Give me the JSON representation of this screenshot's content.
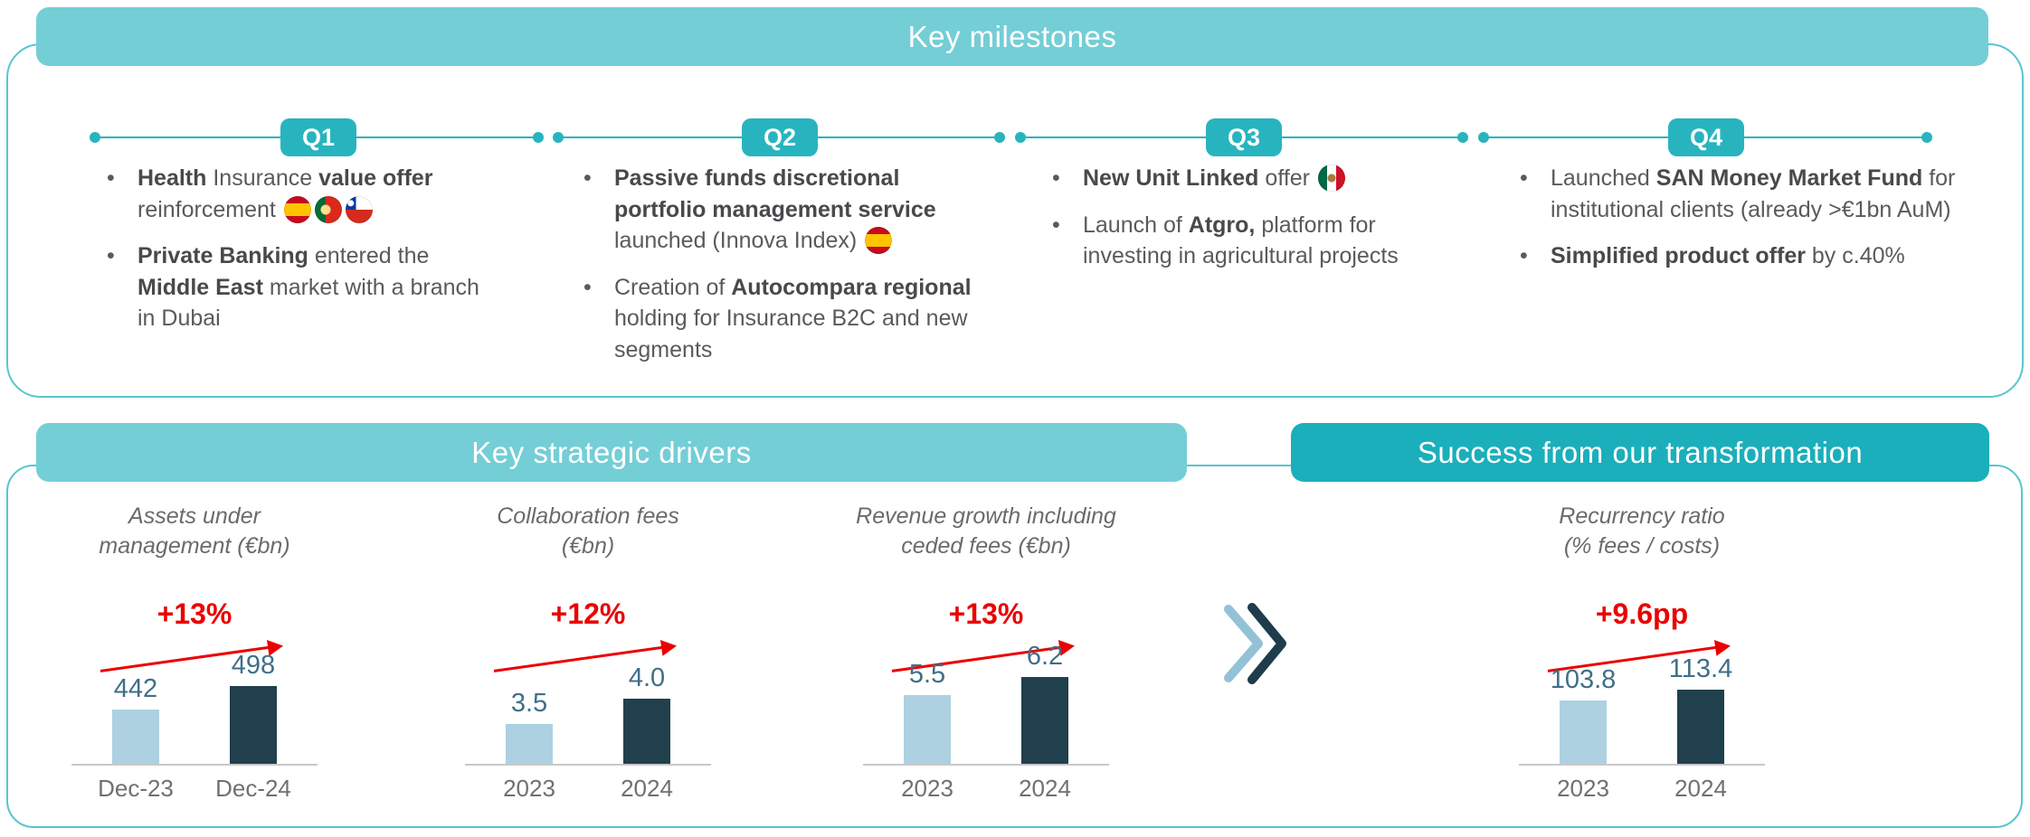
{
  "colors": {
    "teal_light": "#74ced6",
    "teal": "#28b4bf",
    "teal_dark": "#1aafbb",
    "box_border": "#57c6d0",
    "red": "#eb0000",
    "bar_light": "#add1e1",
    "bar_dark": "#20404d",
    "value_text": "#3f6f88",
    "text": "#595a5d"
  },
  "ui": {
    "bullet_glyph": "•"
  },
  "icons": {
    "transition": "double-chevron-right-icon",
    "trend": "growth-arrow-icon",
    "flags_used": [
      "spain-flag-icon",
      "portugal-flag-icon",
      "chile-flag-icon",
      "mexico-flag-icon"
    ]
  },
  "milestones": {
    "title": "Key milestones",
    "quarters": [
      {
        "label": "Q1",
        "bullets": [
          {
            "segments": [
              {
                "t": "Health",
                "b": true
              },
              {
                "t": " Insurance ",
                "b": false
              },
              {
                "t": "value offer",
                "b": true
              },
              {
                "t": " reinforcement ",
                "b": false
              },
              {
                "flag": "spain"
              },
              {
                "flag": "portugal"
              },
              {
                "flag": "chile"
              }
            ]
          },
          {
            "segments": [
              {
                "t": "Private Banking",
                "b": true
              },
              {
                "t": " entered the ",
                "b": false
              },
              {
                "t": "Middle East",
                "b": true
              },
              {
                "t": " market with a branch in Dubai",
                "b": false
              }
            ]
          }
        ]
      },
      {
        "label": "Q2",
        "bullets": [
          {
            "segments": [
              {
                "t": "Passive funds discretional portfolio management service",
                "b": true
              },
              {
                "t": " launched (Innova Index) ",
                "b": false
              },
              {
                "flag": "spain"
              }
            ]
          },
          {
            "segments": [
              {
                "t": "Creation of ",
                "b": false
              },
              {
                "t": "Autocompara regional",
                "b": true
              },
              {
                "t": " holding for Insurance B2C and new segments",
                "b": false
              }
            ]
          }
        ]
      },
      {
        "label": "Q3",
        "bullets": [
          {
            "segments": [
              {
                "t": "New Unit Linked",
                "b": true
              },
              {
                "t": " offer ",
                "b": false
              },
              {
                "flag": "mexico"
              }
            ]
          },
          {
            "segments": [
              {
                "t": "Launch of ",
                "b": false
              },
              {
                "t": "Atgro,",
                "b": true
              },
              {
                "t": " platform for investing in agricultural projects",
                "b": false
              }
            ]
          }
        ]
      },
      {
        "label": "Q4",
        "bullets": [
          {
            "segments": [
              {
                "t": "Launched ",
                "b": false
              },
              {
                "t": "SAN Money Market Fund",
                "b": true
              },
              {
                "t": " for institutional clients (already >€1bn AuM)",
                "b": false
              }
            ]
          },
          {
            "segments": [
              {
                "t": "Simplified product offer",
                "b": true
              },
              {
                "t": " by c.40%",
                "b": false
              }
            ]
          }
        ]
      }
    ]
  },
  "drivers": {
    "title": "Key strategic drivers"
  },
  "transformation": {
    "title": "Success from our transformation"
  },
  "chart_data": [
    {
      "id": "assets-under-management",
      "type": "bar",
      "title": "Assets under management (€bn)",
      "title_lines": [
        "Assets under",
        "management (€bn)"
      ],
      "categories": [
        "Dec-23",
        "Dec-24"
      ],
      "values": [
        442,
        498
      ],
      "value_labels": [
        "442",
        "498"
      ],
      "change_label": "+13%",
      "bar_colors": [
        "#add1e1",
        "#20404d"
      ],
      "grid": false,
      "legend": false
    },
    {
      "id": "collaboration-fees",
      "type": "bar",
      "title": "Collaboration fees (€bn)",
      "title_lines": [
        "Collaboration fees",
        "(€bn)"
      ],
      "categories": [
        "2023",
        "2024"
      ],
      "values": [
        3.5,
        4.0
      ],
      "value_labels": [
        "3.5",
        "4.0"
      ],
      "change_label": "+12%",
      "bar_colors": [
        "#add1e1",
        "#20404d"
      ],
      "grid": false,
      "legend": false
    },
    {
      "id": "revenue-growth",
      "type": "bar",
      "title": "Revenue growth including ceded fees (€bn)",
      "title_lines": [
        "Revenue growth including",
        "ceded fees (€bn)"
      ],
      "categories": [
        "2023",
        "2024"
      ],
      "values": [
        5.5,
        6.2
      ],
      "value_labels": [
        "5.5",
        "6.2"
      ],
      "change_label": "+13%",
      "bar_colors": [
        "#add1e1",
        "#20404d"
      ],
      "grid": false,
      "legend": false
    },
    {
      "id": "recurrency-ratio",
      "type": "bar",
      "title": "Recurrency ratio (% fees / costs)",
      "title_lines": [
        "Recurrency ratio",
        "(% fees / costs)"
      ],
      "categories": [
        "2023",
        "2024"
      ],
      "values": [
        103.8,
        113.4
      ],
      "value_labels": [
        "103.8",
        "113.4"
      ],
      "change_label": "+9.6pp",
      "bar_colors": [
        "#add1e1",
        "#20404d"
      ],
      "grid": false,
      "legend": false
    }
  ]
}
